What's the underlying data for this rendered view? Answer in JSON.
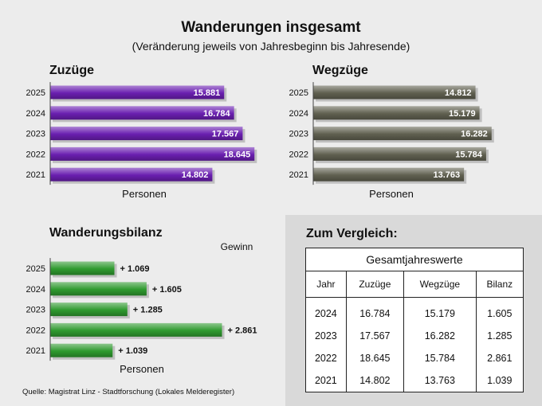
{
  "title": "Wanderungen insgesamt",
  "subtitle": "(Veränderung jeweils von Jahresbeginn bis Jahresende)",
  "colors": {
    "zuzuege": "#6a1fb0",
    "wegzuege": "#606050",
    "bilanz": "#2f9a2f"
  },
  "chart_data": [
    {
      "type": "bar",
      "title": "Zuzüge",
      "orientation": "horizontal",
      "categories": [
        "2025",
        "2024",
        "2023",
        "2022",
        "2021"
      ],
      "values": [
        15881,
        16784,
        17567,
        18645,
        14802
      ],
      "value_labels": [
        "15.881",
        "16.784",
        "17.567",
        "18.645",
        "14.802"
      ],
      "xlabel": "Personen",
      "xlim": [
        0,
        19500
      ]
    },
    {
      "type": "bar",
      "title": "Wegzüge",
      "orientation": "horizontal",
      "categories": [
        "2025",
        "2024",
        "2023",
        "2022",
        "2021"
      ],
      "values": [
        14812,
        15179,
        16282,
        15784,
        13763
      ],
      "value_labels": [
        "14.812",
        "15.179",
        "16.282",
        "15.784",
        "13.763"
      ],
      "xlabel": "Personen",
      "xlim": [
        0,
        19500
      ]
    },
    {
      "type": "bar",
      "title": "Wanderungsbilanz",
      "orientation": "horizontal",
      "categories": [
        "2025",
        "2024",
        "2023",
        "2022",
        "2021"
      ],
      "values": [
        1069,
        1605,
        1285,
        2861,
        1039
      ],
      "value_labels": [
        "+ 1.069",
        "+ 1.605",
        "+ 1.285",
        "+ 2.861",
        "+ 1.039"
      ],
      "annotation": "Gewinn",
      "xlabel": "Personen",
      "xlim": [
        0,
        3000
      ]
    }
  ],
  "comparison": {
    "title": "Zum Vergleich:",
    "group_header": "Gesamtjahreswerte",
    "columns": [
      "Jahr",
      "Zuzüge",
      "Wegzüge",
      "Bilanz"
    ],
    "rows": [
      [
        "2024",
        "16.784",
        "15.179",
        "1.605"
      ],
      [
        "2023",
        "17.567",
        "16.282",
        "1.285"
      ],
      [
        "2022",
        "18.645",
        "15.784",
        "2.861"
      ],
      [
        "2021",
        "14.802",
        "13.763",
        "1.039"
      ]
    ]
  },
  "source": "Quelle: Magistrat Linz - Stadtforschung (Lokales Melderegister)"
}
